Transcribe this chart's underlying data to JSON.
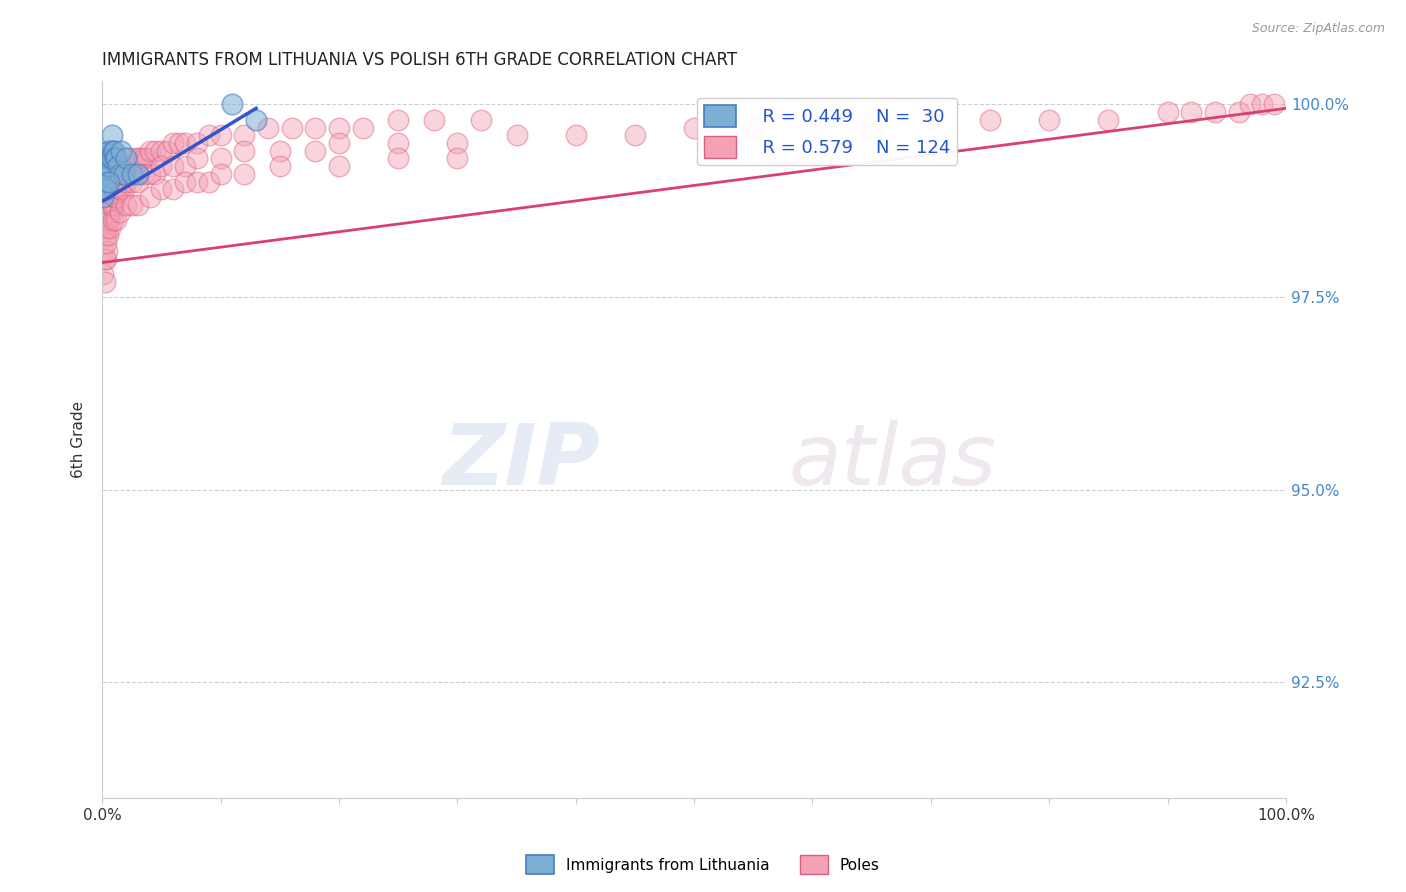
{
  "title": "IMMIGRANTS FROM LITHUANIA VS POLISH 6TH GRADE CORRELATION CHART",
  "source": "Source: ZipAtlas.com",
  "ylabel": "6th Grade",
  "ytick_labels": [
    "100.0%",
    "97.5%",
    "95.0%",
    "92.5%"
  ],
  "ytick_values": [
    1.0,
    0.975,
    0.95,
    0.925
  ],
  "legend_entries": [
    {
      "label": "Immigrants from Lithuania",
      "color": "#aabfdd"
    },
    {
      "label": "Poles",
      "color": "#f4a0b0"
    }
  ],
  "blue_scatter_x": [
    0.001,
    0.001,
    0.002,
    0.002,
    0.003,
    0.003,
    0.004,
    0.004,
    0.005,
    0.005,
    0.006,
    0.006,
    0.007,
    0.008,
    0.008,
    0.009,
    0.01,
    0.011,
    0.012,
    0.013,
    0.015,
    0.016,
    0.018,
    0.02,
    0.025,
    0.03,
    0.11,
    0.13,
    0.003,
    0.006
  ],
  "blue_scatter_y": [
    0.99,
    0.988,
    0.992,
    0.991,
    0.993,
    0.991,
    0.993,
    0.99,
    0.994,
    0.992,
    0.994,
    0.992,
    0.993,
    0.996,
    0.993,
    0.994,
    0.994,
    0.993,
    0.993,
    0.992,
    0.991,
    0.994,
    0.991,
    0.993,
    0.991,
    0.991,
    1.0,
    0.998,
    0.989,
    0.99
  ],
  "pink_scatter_x": [
    0.001,
    0.001,
    0.002,
    0.002,
    0.002,
    0.003,
    0.003,
    0.003,
    0.004,
    0.004,
    0.004,
    0.005,
    0.005,
    0.006,
    0.006,
    0.007,
    0.007,
    0.008,
    0.008,
    0.009,
    0.01,
    0.01,
    0.011,
    0.012,
    0.013,
    0.015,
    0.016,
    0.018,
    0.02,
    0.022,
    0.025,
    0.028,
    0.03,
    0.032,
    0.035,
    0.038,
    0.04,
    0.045,
    0.05,
    0.055,
    0.06,
    0.065,
    0.07,
    0.08,
    0.09,
    0.1,
    0.12,
    0.14,
    0.16,
    0.18,
    0.2,
    0.22,
    0.25,
    0.28,
    0.32,
    0.003,
    0.004,
    0.005,
    0.006,
    0.007,
    0.008,
    0.009,
    0.01,
    0.011,
    0.012,
    0.014,
    0.016,
    0.018,
    0.02,
    0.025,
    0.03,
    0.035,
    0.04,
    0.045,
    0.05,
    0.06,
    0.07,
    0.08,
    0.1,
    0.12,
    0.15,
    0.18,
    0.2,
    0.25,
    0.3,
    0.35,
    0.4,
    0.45,
    0.5,
    0.55,
    0.6,
    0.65,
    0.7,
    0.75,
    0.8,
    0.85,
    0.9,
    0.92,
    0.94,
    0.96,
    0.97,
    0.98,
    0.99,
    0.003,
    0.005,
    0.007,
    0.009,
    0.012,
    0.015,
    0.02,
    0.025,
    0.03,
    0.04,
    0.05,
    0.06,
    0.07,
    0.08,
    0.09,
    0.1,
    0.12,
    0.15,
    0.2,
    0.25,
    0.3
  ],
  "pink_scatter_y": [
    0.981,
    0.978,
    0.984,
    0.98,
    0.977,
    0.986,
    0.983,
    0.98,
    0.986,
    0.984,
    0.981,
    0.987,
    0.985,
    0.988,
    0.985,
    0.988,
    0.986,
    0.989,
    0.986,
    0.989,
    0.99,
    0.988,
    0.99,
    0.99,
    0.99,
    0.99,
    0.991,
    0.991,
    0.992,
    0.992,
    0.993,
    0.992,
    0.993,
    0.993,
    0.993,
    0.993,
    0.994,
    0.994,
    0.994,
    0.994,
    0.995,
    0.995,
    0.995,
    0.995,
    0.996,
    0.996,
    0.996,
    0.997,
    0.997,
    0.997,
    0.997,
    0.997,
    0.998,
    0.998,
    0.998,
    0.984,
    0.985,
    0.986,
    0.986,
    0.987,
    0.987,
    0.987,
    0.988,
    0.988,
    0.988,
    0.989,
    0.989,
    0.989,
    0.99,
    0.99,
    0.99,
    0.991,
    0.991,
    0.991,
    0.992,
    0.992,
    0.992,
    0.993,
    0.993,
    0.994,
    0.994,
    0.994,
    0.995,
    0.995,
    0.995,
    0.996,
    0.996,
    0.996,
    0.997,
    0.997,
    0.997,
    0.997,
    0.998,
    0.998,
    0.998,
    0.998,
    0.999,
    0.999,
    0.999,
    0.999,
    1.0,
    1.0,
    1.0,
    0.982,
    0.983,
    0.984,
    0.985,
    0.985,
    0.986,
    0.987,
    0.987,
    0.987,
    0.988,
    0.989,
    0.989,
    0.99,
    0.99,
    0.99,
    0.991,
    0.991,
    0.992,
    0.992,
    0.993,
    0.993
  ],
  "blue_line_x": [
    0.001,
    0.13
  ],
  "blue_line_y": [
    0.9875,
    0.9995
  ],
  "pink_line_x": [
    0.001,
    1.0
  ],
  "pink_line_y": [
    0.9795,
    0.9995
  ],
  "xlim": [
    0.0,
    1.0
  ],
  "ylim": [
    0.91,
    1.003
  ],
  "scatter_size": 220,
  "blue_scatter_color": "#7bafd4",
  "blue_scatter_edge": "#4a7bbf",
  "pink_scatter_color": "#f4a0b5",
  "pink_scatter_edge": "#d96080",
  "blue_line_color": "#3355cc",
  "pink_line_color": "#d94070",
  "background_color": "#ffffff",
  "grid_color": "#d0d0d0",
  "title_fontsize": 12,
  "axis_label_fontsize": 11,
  "tick_fontsize": 11,
  "legend_r1": "R = 0.449",
  "legend_n1": "N =  30",
  "legend_r2": "R = 0.579",
  "legend_n2": "N = 124",
  "watermark_zip": "ZIP",
  "watermark_atlas": "atlas",
  "label_lithuania": "Immigrants from Lithuania",
  "label_poles": "Poles"
}
